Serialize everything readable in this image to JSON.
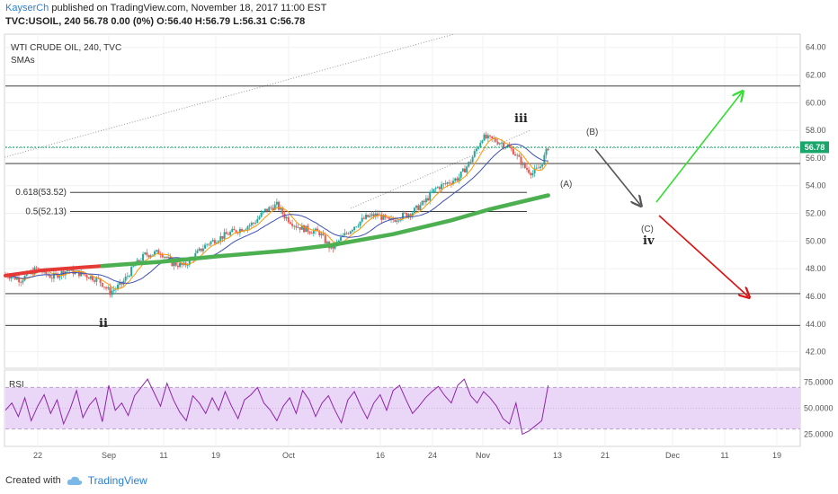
{
  "header": {
    "author": "KayserCh",
    "published": "published on TradingView.com, November 18, 2017 11:00 EST",
    "ohlc": "TVC:USOIL, 240  56.78  0.00 (0%)  O:56.40  H:56.79  L:56.31  C:56.78"
  },
  "legend": {
    "title": "WTI CRUDE OIL, 240, TVC",
    "indicator": "SMAs"
  },
  "rsi_title": "RSI",
  "footer": {
    "created": "Created with",
    "brand": "TradingView"
  },
  "price_tag": "56.78",
  "colors": {
    "price_line": "#2196f3",
    "sma_fast": "#ff9800",
    "sma_mid": "#3f51b5",
    "sma_slow": "#4caf50",
    "sma_red": "#e53935",
    "rsi": "#8e24aa",
    "rsi_band": "#ead7f7",
    "bull_arrow": "#33dd33",
    "bear_arrow": "#dd1111",
    "tag_bg": "#1aa66b"
  },
  "chart_data": [
    {
      "type": "candlestick",
      "title": "WTI CRUDE OIL, 240, TVC",
      "x_ticks": [
        "22",
        "Sep",
        "11",
        "19",
        "Oct",
        "16",
        "24",
        "Nov",
        "13",
        "21",
        "Dec",
        "11",
        "19"
      ],
      "y_ticks": [
        "64.00",
        "62.00",
        "60.00",
        "58.00",
        "56.00",
        "54.00",
        "52.00",
        "50.00",
        "48.00",
        "46.00",
        "44.00",
        "42.00"
      ],
      "ylim": [
        41,
        64.5
      ],
      "close_path": [
        [
          0,
          47.6
        ],
        [
          4,
          47.2
        ],
        [
          8,
          48.0
        ],
        [
          12,
          47.4
        ],
        [
          16,
          47.9
        ],
        [
          20,
          47.6
        ],
        [
          24,
          47.2
        ],
        [
          27,
          46.3
        ],
        [
          30,
          46.9
        ],
        [
          33,
          48.1
        ],
        [
          36,
          49.0
        ],
        [
          40,
          49.2
        ],
        [
          43,
          48.4
        ],
        [
          46,
          48.2
        ],
        [
          49,
          49.0
        ],
        [
          52,
          49.8
        ],
        [
          55,
          50.2
        ],
        [
          58,
          50.6
        ],
        [
          61,
          50.9
        ],
        [
          64,
          51.3
        ],
        [
          67,
          52.2
        ],
        [
          70,
          52.6
        ],
        [
          72,
          51.8
        ],
        [
          75,
          51.1
        ],
        [
          78,
          50.8
        ],
        [
          81,
          50.6
        ],
        [
          84,
          49.4
        ],
        [
          87,
          50.3
        ],
        [
          90,
          51.1
        ],
        [
          93,
          51.7
        ],
        [
          96,
          51.9
        ],
        [
          99,
          51.4
        ],
        [
          102,
          51.8
        ],
        [
          105,
          52.1
        ],
        [
          108,
          52.8
        ],
        [
          111,
          53.8
        ],
        [
          114,
          54.2
        ],
        [
          117,
          54.6
        ],
        [
          120,
          55.8
        ],
        [
          123,
          57.5
        ],
        [
          126,
          57.3
        ],
        [
          128,
          57.1
        ],
        [
          131,
          56.5
        ],
        [
          134,
          55.3
        ],
        [
          136,
          54.9
        ],
        [
          138,
          55.4
        ],
        [
          140,
          56.78
        ]
      ],
      "sma_red": [
        [
          0,
          47.5
        ],
        [
          10,
          47.9
        ],
        [
          20,
          48.1
        ],
        [
          25,
          48.2
        ]
      ],
      "sma_slow": [
        [
          25,
          48.2
        ],
        [
          40,
          48.5
        ],
        [
          55,
          48.9
        ],
        [
          72,
          49.3
        ],
        [
          84,
          49.7
        ],
        [
          100,
          50.5
        ],
        [
          115,
          51.5
        ],
        [
          125,
          52.3
        ],
        [
          140,
          53.3
        ]
      ],
      "horizontal_levels": [
        61.2,
        56.75,
        55.6,
        46.2,
        43.9
      ],
      "fib_levels": [
        {
          "label": "0.618(53.52)",
          "value": 53.52
        },
        {
          "label": "0.5(52.13)",
          "value": 52.13
        }
      ],
      "last_price": 56.78,
      "wave_labels": [
        "ii",
        "iii",
        "(A)",
        "(B)",
        "(C)",
        "iv"
      ]
    },
    {
      "type": "line",
      "title": "RSI",
      "y_ticks": [
        "75.0000",
        "50.0000",
        "25.0000"
      ],
      "ylim": [
        15,
        85
      ],
      "band": [
        30,
        70
      ],
      "values": [
        48,
        55,
        42,
        60,
        38,
        52,
        63,
        45,
        58,
        35,
        49,
        67,
        41,
        53,
        60,
        37,
        72,
        48,
        55,
        43,
        62,
        70,
        78,
        65,
        52,
        74,
        58,
        46,
        38,
        62,
        55,
        45,
        60,
        48,
        66,
        52,
        40,
        58,
        63,
        70,
        55,
        48,
        38,
        52,
        60,
        45,
        67,
        58,
        42,
        55,
        62,
        48,
        36,
        58,
        66,
        52,
        40,
        55,
        63,
        48,
        67,
        72,
        58,
        45,
        52,
        60,
        66,
        71,
        62,
        55,
        72,
        78,
        62,
        55,
        66,
        60,
        52,
        40,
        35,
        55,
        25,
        28,
        33,
        38,
        72
      ]
    }
  ]
}
